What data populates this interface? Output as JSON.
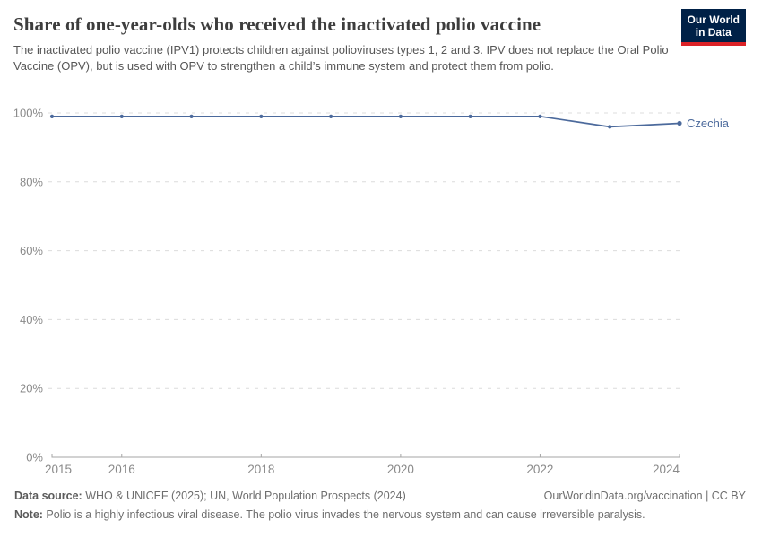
{
  "header": {
    "logo": {
      "line1": "Our World",
      "line2": "in Data",
      "bg_color": "#002147",
      "accent_color": "#dc2227"
    }
  },
  "chart_data": {
    "type": "line",
    "title": "Share of one-year-olds who received the inactivated polio vaccine",
    "subtitle": "The inactivated polio vaccine (IPV1) protects children against polioviruses types 1, 2 and 3. IPV does not replace the Oral Polio Vaccine (OPV), but is used with OPV to strengthen a child’s immune system and protect them from polio.",
    "x": [
      2015,
      2016,
      2017,
      2018,
      2019,
      2020,
      2021,
      2022,
      2023,
      2024
    ],
    "series": [
      {
        "name": "Czechia",
        "color": "#4c6a9c",
        "values": [
          99,
          99,
          99,
          99,
          99,
          99,
          99,
          99,
          96,
          97
        ]
      }
    ],
    "xlim": [
      2015,
      2024
    ],
    "ylim": [
      0,
      100
    ],
    "x_tick_labels": [
      2015,
      2016,
      2018,
      2020,
      2022,
      2024
    ],
    "y_ticks": [
      0,
      20,
      40,
      60,
      80,
      100
    ],
    "y_suffix": "%",
    "grid": "horizontal-dashed",
    "legend": "entity label right of line end",
    "colors": {
      "grid": "#dcdcdc",
      "axis": "#a5a5a5",
      "tick_text": "#8a8a8a"
    }
  },
  "footer": {
    "data_source_label": "Data source:",
    "data_source_text": " WHO & UNICEF (2025); UN, World Population Prospects (2024)",
    "attribution": "OurWorldinData.org/vaccination | CC BY",
    "note_label": "Note:",
    "note_text": " Polio is a highly infectious viral disease. The polio virus invades the nervous system and can cause irreversible paralysis."
  }
}
